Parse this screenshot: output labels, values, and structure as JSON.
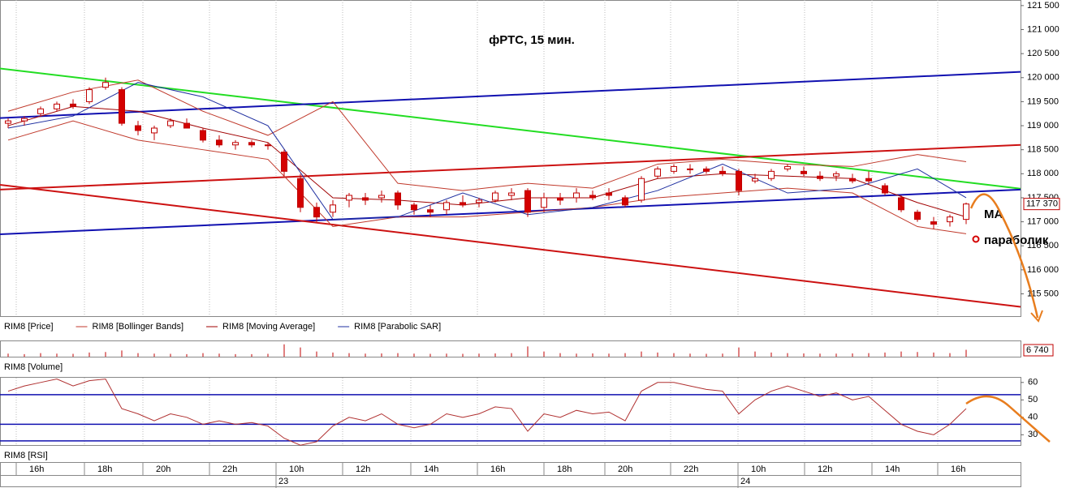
{
  "chart_data": {
    "type": "candlestick",
    "title": "фРТС, 15 мин.",
    "legend": [
      {
        "name": "RIM8 [Price]",
        "color": null
      },
      {
        "name": "RIM8 [Bollinger Bands]",
        "color": "#c0392b"
      },
      {
        "name": "RIM8 [Moving Average]",
        "color": "#a00000"
      },
      {
        "name": "RIM8 [Parabolic SAR]",
        "color": "#1f2fa0"
      }
    ],
    "xlim": [
      -0.5,
      62.35
    ],
    "xticks": [
      {
        "value": 0.5,
        "label": "16h"
      },
      {
        "value": 4.7,
        "label": "18h"
      },
      {
        "value": 8.3,
        "label": "20h"
      },
      {
        "value": 12.4,
        "label": "22h"
      },
      {
        "value": 16.5,
        "label": "10h"
      },
      {
        "value": 20.6,
        "label": "12h"
      },
      {
        "value": 24.8,
        "label": "14h"
      },
      {
        "value": 28.9,
        "label": "16h"
      },
      {
        "value": 33.0,
        "label": "18h"
      },
      {
        "value": 36.75,
        "label": "20h"
      },
      {
        "value": 40.8,
        "label": "22h"
      },
      {
        "value": 44.95,
        "label": "10h"
      },
      {
        "value": 49.05,
        "label": "12h"
      },
      {
        "value": 53.2,
        "label": "14h"
      },
      {
        "value": 57.25,
        "label": "16h"
      }
    ],
    "dates": [
      {
        "value": 16.5,
        "label": "23"
      },
      {
        "value": 44.95,
        "label": "24"
      }
    ],
    "ylim": [
      115036,
      121616
    ],
    "yticks": [
      {
        "value": 121500,
        "label": "121 500"
      },
      {
        "value": 121000,
        "label": "121 000"
      },
      {
        "value": 120500,
        "label": "120 500"
      },
      {
        "value": 120000,
        "label": "120 000"
      },
      {
        "value": 119500,
        "label": "119 500"
      },
      {
        "value": 119000,
        "label": "119 000"
      },
      {
        "value": 118500,
        "label": "118 500"
      },
      {
        "value": 118000,
        "label": "118 000"
      },
      {
        "value": 117500,
        "label": "117 500"
      },
      {
        "value": 117000,
        "label": "117 000"
      },
      {
        "value": 116500,
        "label": "116 500"
      },
      {
        "value": 116000,
        "label": "116 000"
      },
      {
        "value": 115500,
        "label": "115 500"
      }
    ],
    "up_color": "#ffffff",
    "down_color": "#d40000",
    "candle_edge": "#c00000",
    "candles": [
      [
        119050,
        119150,
        118950,
        119100
      ],
      [
        119100,
        119200,
        119000,
        119150
      ],
      [
        119250,
        119400,
        119200,
        119350
      ],
      [
        119350,
        119500,
        119300,
        119450
      ],
      [
        119450,
        119550,
        119350,
        119400
      ],
      [
        119500,
        119800,
        119450,
        119750
      ],
      [
        119800,
        120000,
        119750,
        119900
      ],
      [
        119750,
        119800,
        119000,
        119050
      ],
      [
        119000,
        119100,
        118800,
        118900
      ],
      [
        118850,
        119000,
        118700,
        118950
      ],
      [
        119000,
        119150,
        118950,
        119100
      ],
      [
        119050,
        119150,
        118950,
        118950
      ],
      [
        118900,
        118950,
        118650,
        118700
      ],
      [
        118700,
        118800,
        118550,
        118600
      ],
      [
        118600,
        118700,
        118500,
        118650
      ],
      [
        118650,
        118700,
        118550,
        118600
      ],
      [
        118600,
        118650,
        118500,
        118600
      ],
      [
        118450,
        118500,
        117950,
        118050
      ],
      [
        117900,
        118000,
        117200,
        117300
      ],
      [
        117300,
        117400,
        117000,
        117100
      ],
      [
        117200,
        117450,
        117100,
        117350
      ],
      [
        117450,
        117600,
        117300,
        117550
      ],
      [
        117500,
        117600,
        117350,
        117450
      ],
      [
        117500,
        117650,
        117400,
        117550
      ],
      [
        117600,
        117650,
        117250,
        117350
      ],
      [
        117350,
        117400,
        117150,
        117250
      ],
      [
        117250,
        117350,
        117100,
        117200
      ],
      [
        117250,
        117450,
        117150,
        117400
      ],
      [
        117400,
        117550,
        117300,
        117350
      ],
      [
        117400,
        117500,
        117300,
        117450
      ],
      [
        117450,
        117650,
        117400,
        117600
      ],
      [
        117550,
        117700,
        117450,
        117600
      ],
      [
        117650,
        117700,
        117100,
        117200
      ],
      [
        117300,
        117600,
        117200,
        117500
      ],
      [
        117500,
        117600,
        117350,
        117450
      ],
      [
        117500,
        117700,
        117400,
        117600
      ],
      [
        117550,
        117650,
        117450,
        117500
      ],
      [
        117600,
        117700,
        117450,
        117550
      ],
      [
        117500,
        117550,
        117300,
        117350
      ],
      [
        117450,
        117950,
        117400,
        117900
      ],
      [
        117950,
        118150,
        117900,
        118100
      ],
      [
        118050,
        118200,
        118000,
        118150
      ],
      [
        118100,
        118200,
        118000,
        118100
      ],
      [
        118100,
        118150,
        118000,
        118050
      ],
      [
        118050,
        118150,
        117950,
        118000
      ],
      [
        118050,
        118100,
        117550,
        117650
      ],
      [
        117850,
        118000,
        117800,
        117900
      ],
      [
        117900,
        118100,
        117850,
        118050
      ],
      [
        118100,
        118200,
        118050,
        118150
      ],
      [
        118050,
        118150,
        117950,
        118000
      ],
      [
        117950,
        118050,
        117850,
        117900
      ],
      [
        117950,
        118050,
        117850,
        118000
      ],
      [
        117900,
        118000,
        117800,
        117850
      ],
      [
        117900,
        118050,
        117800,
        117850
      ],
      [
        117750,
        117800,
        117550,
        117600
      ],
      [
        117500,
        117550,
        117200,
        117250
      ],
      [
        117200,
        117250,
        117000,
        117050
      ],
      [
        117000,
        117100,
        116850,
        116950
      ],
      [
        117000,
        117150,
        116900,
        117100
      ],
      [
        117050,
        117400,
        116950,
        117370
      ]
    ],
    "indicators": [
      {
        "color": "#c0392b",
        "x": [
          0,
          4,
          8,
          12,
          16,
          20,
          24,
          28,
          32,
          36,
          40,
          44,
          48,
          52,
          56,
          59
        ],
        "values": [
          119300,
          119700,
          119950,
          119300,
          118800,
          119500,
          117800,
          117650,
          117800,
          117700,
          118200,
          118300,
          118200,
          118150,
          118400,
          118250
        ]
      },
      {
        "color": "#c0392b",
        "x": [
          0,
          4,
          8,
          12,
          16,
          20,
          24,
          28,
          32,
          36,
          40,
          44,
          48,
          52,
          56,
          59
        ],
        "values": [
          118700,
          119100,
          118700,
          118500,
          118300,
          116900,
          117100,
          117100,
          117200,
          117300,
          117500,
          117600,
          117700,
          117600,
          116900,
          116750
        ]
      },
      {
        "color": "#a00000",
        "x": [
          0,
          4,
          8,
          12,
          16,
          20,
          24,
          28,
          32,
          36,
          40,
          44,
          48,
          52,
          56,
          59
        ],
        "values": [
          119000,
          119400,
          119300,
          118950,
          118650,
          117500,
          117450,
          117350,
          117500,
          117500,
          117900,
          118000,
          117950,
          117900,
          117400,
          117100
        ]
      },
      {
        "color": "#1f2fa0",
        "x": [
          0,
          4,
          8,
          12,
          16,
          20,
          24,
          28,
          32,
          36,
          40,
          44,
          48,
          52,
          56,
          59
        ],
        "values": [
          118950,
          119200,
          119900,
          119600,
          119000,
          117050,
          117100,
          117600,
          117150,
          117300,
          117650,
          118200,
          117600,
          117700,
          118100,
          117500
        ]
      }
    ],
    "trendlines": [
      {
        "color": "#22dd22",
        "x": [
          -0.5,
          62.35
        ],
        "values": [
          120190,
          117690
        ]
      },
      {
        "color": "#1010b0",
        "x": [
          -0.5,
          62.35
        ],
        "values": [
          119160,
          120120
        ]
      },
      {
        "color": "#cc1111",
        "x": [
          -0.5,
          62.35
        ],
        "values": [
          117670,
          118600
        ]
      },
      {
        "color": "#1010b0",
        "x": [
          -0.5,
          62.35
        ],
        "values": [
          116740,
          117670
        ]
      },
      {
        "color": "#cc1111",
        "x": [
          -0.5,
          62.35
        ],
        "values": [
          117770,
          115230
        ]
      }
    ],
    "price_marker": {
      "value": 117370,
      "label": "117 370"
    },
    "annotations": [
      "MA",
      "параболик"
    ],
    "volume": {
      "name": "RIM8 [Volume]",
      "color": "#c00000",
      "ylim": [
        0,
        15000
      ],
      "values": [
        3000,
        2500,
        3500,
        3000,
        2800,
        4000,
        4500,
        6000,
        3500,
        3000,
        2800,
        2500,
        3500,
        3000,
        2500,
        2500,
        2800,
        12000,
        9000,
        5000,
        4000,
        3500,
        3000,
        3200,
        3500,
        3000,
        2800,
        3000,
        2800,
        3000,
        3200,
        3500,
        10000,
        5000,
        3500,
        3000,
        3200,
        3000,
        3500,
        5000,
        4000,
        3500,
        3000,
        2800,
        3000,
        9000,
        5000,
        4000,
        3500,
        3200,
        3000,
        3000,
        3200,
        3500,
        4000,
        5000,
        4500,
        4000,
        3500,
        6740
      ],
      "marker": {
        "value": 6740,
        "label": "6 740"
      }
    },
    "rsi": {
      "name": "RIM8 [RSI]",
      "color": "#b03030",
      "ylim": [
        24.1,
        62.7
      ],
      "yticks": [
        60,
        50,
        40,
        30
      ],
      "levels": [
        53,
        36,
        26.5
      ],
      "level_color": "#1010b0",
      "values": [
        55,
        58,
        60,
        62,
        58,
        61,
        62,
        45,
        42,
        38,
        42,
        40,
        36,
        38,
        36,
        37,
        35,
        28,
        24,
        26,
        35,
        40,
        38,
        42,
        36,
        34,
        36,
        42,
        40,
        42,
        46,
        45,
        32,
        42,
        40,
        44,
        42,
        43,
        38,
        55,
        60,
        60,
        58,
        56,
        55,
        42,
        50,
        55,
        58,
        55,
        52,
        54,
        50,
        52,
        44,
        36,
        32,
        30,
        36,
        45
      ]
    }
  }
}
